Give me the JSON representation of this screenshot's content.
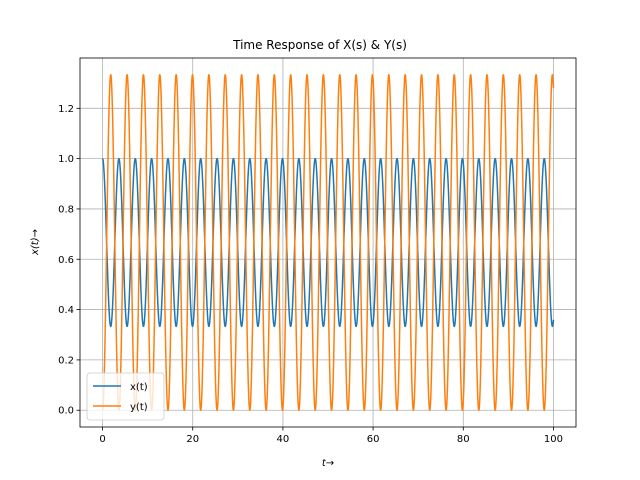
{
  "chart_data": {
    "type": "line",
    "title": "Time Response of X(s) & Y(s)",
    "xlabel": "t→",
    "ylabel": "x(t)→",
    "xlim": [
      -5,
      105
    ],
    "ylim": [
      -0.0667,
      1.4
    ],
    "xticks": [
      0,
      20,
      40,
      60,
      80,
      100
    ],
    "yticks": [
      0.0,
      0.2,
      0.4,
      0.6,
      0.8,
      1.0,
      1.2
    ],
    "ytick_labels": [
      "0.0",
      "0.2",
      "0.4",
      "0.6",
      "0.8",
      "1.0",
      "1.2"
    ],
    "grid": true,
    "legend_position": "lower-left",
    "t_range": [
      0,
      100
    ],
    "period": 3.628,
    "series": [
      {
        "name": "x(t)",
        "color": "#1f77b4",
        "formula": "x(t) = 2/3 + (1/3)·cos(√3·t)",
        "min": 0.3333,
        "max": 1.0
      },
      {
        "name": "y(t)",
        "color": "#ff7f0e",
        "formula": "y(t) = 2/3 − (2/3)·cos(√3·t)",
        "min": 0.0,
        "max": 1.3333
      }
    ]
  }
}
